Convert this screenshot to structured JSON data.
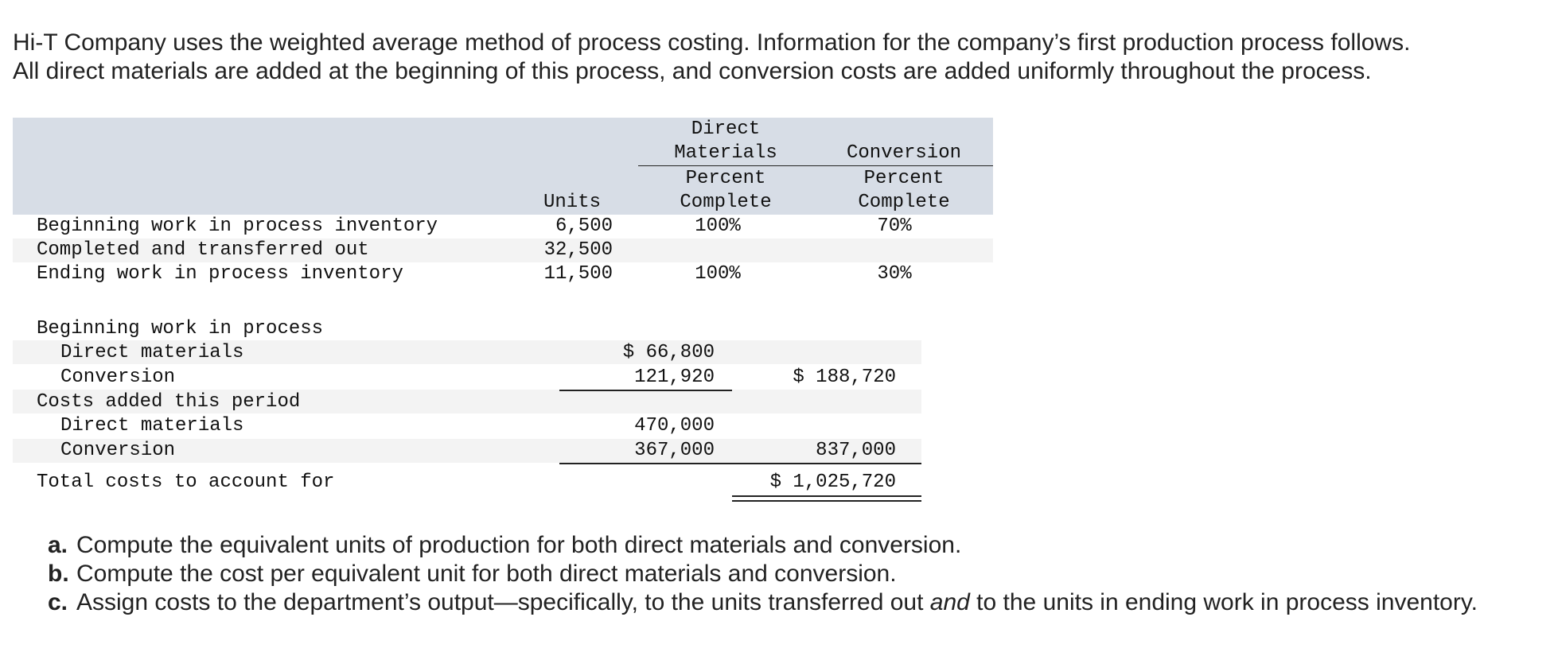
{
  "intro": {
    "line1": "Hi-T Company uses the weighted average method of process costing. Information for the company’s first production process follows.",
    "line2": "All direct materials are added at the beginning of this process, and conversion costs are added uniformly throughout the process."
  },
  "units_table": {
    "header": {
      "units": "Units",
      "dm_group_line1": "Direct",
      "dm_group_line2": "Materials",
      "conv_group": "Conversion",
      "dm_sub_line1": "Percent",
      "dm_sub_line2": "Complete",
      "conv_sub_line1": "Percent",
      "conv_sub_line2": "Complete"
    },
    "rows": [
      {
        "label": "Beginning work in process inventory",
        "units": "6,500",
        "dm_pct": "100%",
        "conv_pct": "70%"
      },
      {
        "label": "Completed and transferred out",
        "units": "32,500",
        "dm_pct": "",
        "conv_pct": ""
      },
      {
        "label": "Ending work in process inventory",
        "units": "11,500",
        "dm_pct": "100%",
        "conv_pct": "30%"
      }
    ]
  },
  "cost_table": {
    "rows": [
      {
        "label": "Beginning work in process",
        "amount": "",
        "total": ""
      },
      {
        "label": "Direct materials",
        "amount": "$ 66,800",
        "total": ""
      },
      {
        "label": "Conversion",
        "amount": "121,920",
        "total": "$ 188,720"
      },
      {
        "label": "Costs added this period",
        "amount": "",
        "total": ""
      },
      {
        "label": "Direct materials",
        "amount": "470,000",
        "total": ""
      },
      {
        "label": "Conversion",
        "amount": "367,000",
        "total": "837,000"
      },
      {
        "label": "Total costs to account for",
        "amount": "",
        "total": "$ 1,025,720"
      }
    ]
  },
  "questions": [
    {
      "letter": "a.",
      "text": "Compute the equivalent units of production for both direct materials and conversion."
    },
    {
      "letter": "b.",
      "text": "Compute the cost per equivalent unit for both direct materials and conversion."
    },
    {
      "letter": "c.",
      "text_before": "Assign costs to the department’s output—specifically, to the units transferred out ",
      "text_em": "and",
      "text_after": " to the units in ending work in process inventory."
    }
  ]
}
